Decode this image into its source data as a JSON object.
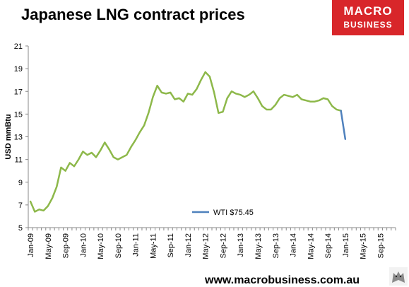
{
  "header": {
    "title": "Japanese LNG contract prices",
    "logo_line1": "MACRO",
    "logo_line2": "BUSINESS"
  },
  "footer": {
    "url": "www.macrobusiness.com.au"
  },
  "colors": {
    "lng": "#8db84a",
    "wti": "#4f81bd",
    "logo_bg": "#d8262a"
  },
  "chart_data": {
    "type": "line",
    "title": "Japanese LNG contract prices",
    "ylabel": "USD mmBtu",
    "xlabel": "",
    "ylim": [
      5,
      21
    ],
    "yticks": [
      5,
      7,
      9,
      11,
      13,
      15,
      17,
      19,
      21
    ],
    "xticks": [
      "Jan-09",
      "May-09",
      "Sep-09",
      "Jan-10",
      "May-10",
      "Sep-10",
      "Jan-11",
      "May-11",
      "Sep-11",
      "Jan-12",
      "May-12",
      "Sep-12",
      "Jan-13",
      "May-13",
      "Sep-13",
      "Jan-14",
      "May-14",
      "Sep-14",
      "Jan-15",
      "May-15",
      "Sep-15"
    ],
    "grid": false,
    "legend_position": "bottom-center",
    "series": [
      {
        "name": "",
        "color": "#8db84a",
        "start": "Jan-09",
        "values": [
          7.3,
          6.4,
          6.6,
          6.5,
          6.9,
          7.6,
          8.6,
          10.3,
          10.0,
          10.7,
          10.4,
          11.0,
          11.7,
          11.4,
          11.6,
          11.2,
          11.8,
          12.5,
          11.9,
          11.2,
          11.0,
          11.2,
          11.4,
          12.1,
          12.7,
          13.4,
          14.0,
          15.1,
          16.5,
          17.5,
          16.9,
          16.8,
          16.9,
          16.3,
          16.4,
          16.1,
          16.8,
          16.7,
          17.2,
          18.0,
          18.7,
          18.3,
          16.9,
          15.1,
          15.2,
          16.4,
          17.0,
          16.8,
          16.7,
          16.5,
          16.7,
          17.0,
          16.4,
          15.7,
          15.4,
          15.4,
          15.8,
          16.4,
          16.7,
          16.6,
          16.5,
          16.7,
          16.3,
          16.2,
          16.1,
          16.1,
          16.2,
          16.4,
          16.3,
          15.7,
          15.4,
          15.3
        ]
      },
      {
        "name": "WTI $75.45",
        "color": "#4f81bd",
        "start": "Dec-14",
        "values": [
          15.3,
          12.8
        ]
      }
    ]
  }
}
